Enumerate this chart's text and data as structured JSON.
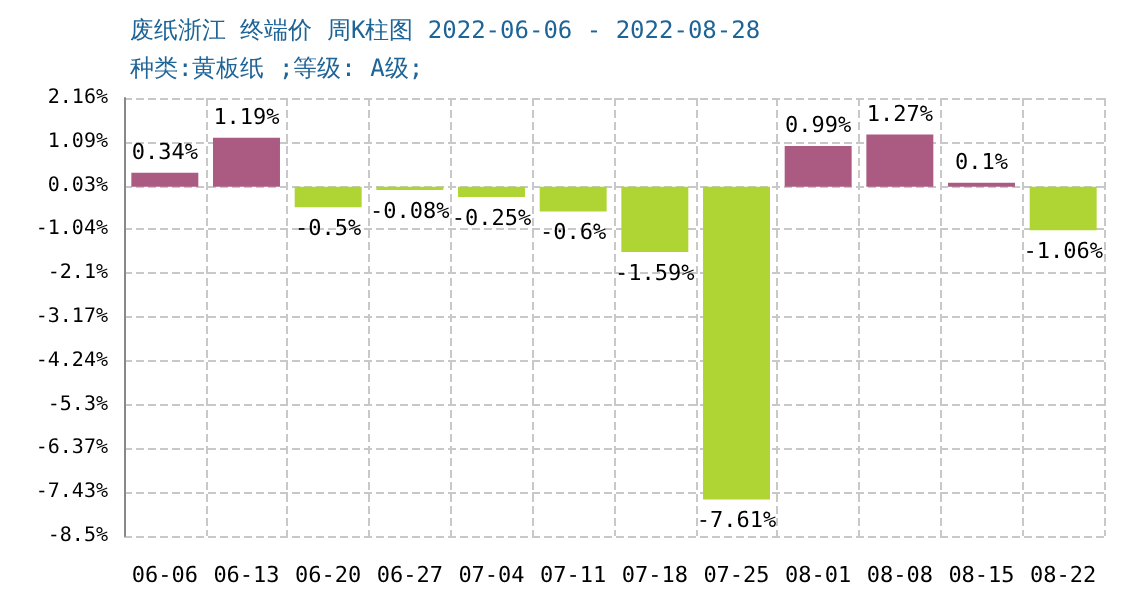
{
  "chart_data": {
    "type": "bar",
    "title": "废纸浙江 终端价 周K柱图 2022-06-06 - 2022-08-28",
    "subtitle": "种类:黄板纸 ;等级: A级;",
    "categories": [
      "06-06",
      "06-13",
      "06-20",
      "06-27",
      "07-04",
      "07-11",
      "07-18",
      "07-25",
      "08-01",
      "08-08",
      "08-15",
      "08-22"
    ],
    "values": [
      0.34,
      1.19,
      -0.5,
      -0.08,
      -0.25,
      -0.6,
      -1.59,
      -7.61,
      0.99,
      1.27,
      0.1,
      -1.06
    ],
    "value_labels": [
      "0.34%",
      "1.19%",
      "-0.5%",
      "-0.08%",
      "-0.25%",
      "-0.6%",
      "-1.59%",
      "-7.61%",
      "0.99%",
      "1.27%",
      "0.1%",
      "-1.06%"
    ],
    "colors": [
      "#ab5a82",
      "#ab5a82",
      "#aed534",
      "#aed534",
      "#aed534",
      "#aed534",
      "#aed534",
      "#aed534",
      "#ab5a82",
      "#ab5a82",
      "#ab5a82",
      "#aed534"
    ],
    "ylim": [
      -8.5,
      2.16
    ],
    "yticks": [
      {
        "value": 2.16,
        "label": "2.16%"
      },
      {
        "value": 1.09,
        "label": "1.09%"
      },
      {
        "value": 0.03,
        "label": "0.03%"
      },
      {
        "value": -1.04,
        "label": "-1.04%"
      },
      {
        "value": -2.1,
        "label": "-2.1%"
      },
      {
        "value": -3.17,
        "label": "-3.17%"
      },
      {
        "value": -4.24,
        "label": "-4.24%"
      },
      {
        "value": -5.3,
        "label": "-5.3%"
      },
      {
        "value": -6.37,
        "label": "-6.37%"
      },
      {
        "value": -7.43,
        "label": "-7.43%"
      },
      {
        "value": -8.5,
        "label": "-8.5%"
      }
    ],
    "grid": true
  }
}
